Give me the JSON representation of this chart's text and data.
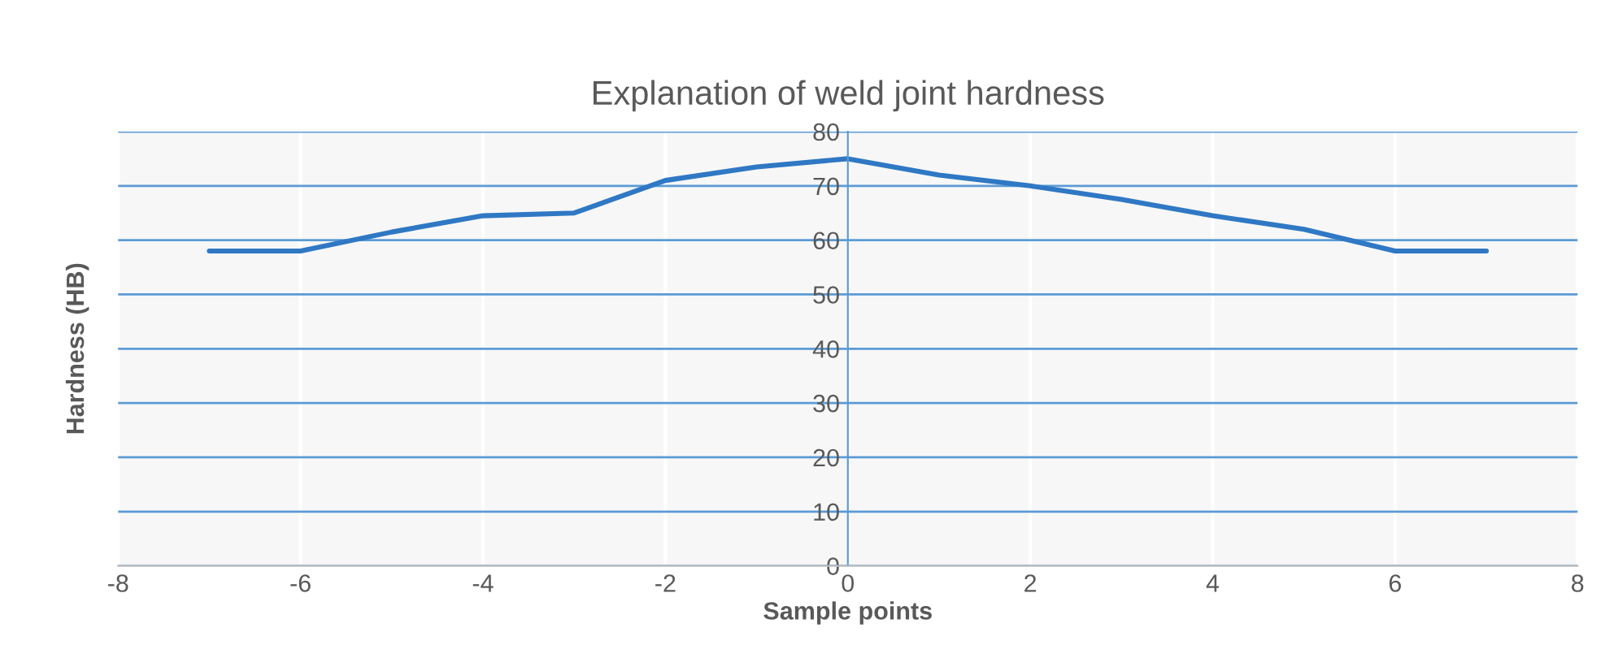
{
  "chart_data": {
    "type": "line",
    "title": "Explanation of weld joint hardness",
    "xlabel": "Sample points",
    "ylabel": "Hardness (HB)",
    "x": [
      -7,
      -6,
      -5,
      -4,
      -3,
      -2,
      -1,
      0,
      1,
      2,
      3,
      4,
      5,
      6,
      7
    ],
    "series": [
      {
        "color": "#2f78c4",
        "values": [
          58,
          58,
          61.5,
          64.5,
          65,
          71,
          73.5,
          75,
          72,
          70,
          67.5,
          64.5,
          62,
          58,
          58
        ]
      }
    ],
    "xlim": [
      -8,
      8
    ],
    "xticks": [
      -8,
      -6,
      -4,
      -2,
      0,
      2,
      4,
      6,
      8
    ],
    "ylim": [
      0,
      80
    ],
    "yticks": [
      0,
      10,
      20,
      30,
      40,
      50,
      60,
      70,
      80
    ],
    "grid": true,
    "marker": "none",
    "line_style": "solid"
  }
}
